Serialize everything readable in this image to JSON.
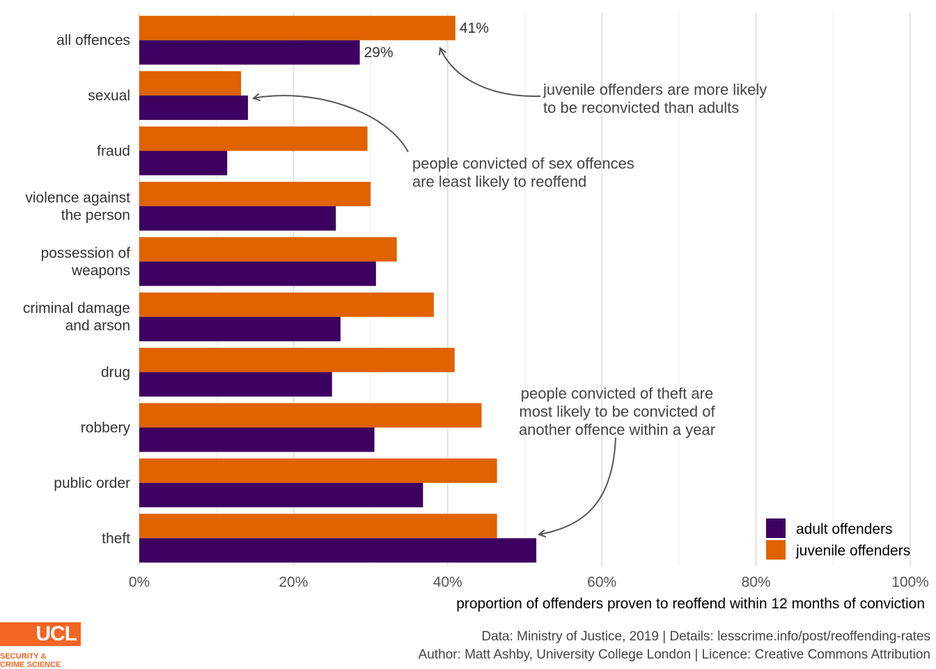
{
  "chart_data": {
    "type": "bar",
    "orientation": "horizontal",
    "categories": [
      "all offences",
      "sexual",
      "fraud",
      "violence against the person",
      "possession of weapons",
      "criminal damage and arson",
      "drug",
      "robbery",
      "public order",
      "theft"
    ],
    "category_label_lines": [
      [
        "all offences"
      ],
      [
        "sexual"
      ],
      [
        "fraud"
      ],
      [
        "violence against",
        "the person"
      ],
      [
        "possession of",
        "weapons"
      ],
      [
        "criminal damage",
        "and arson"
      ],
      [
        "drug"
      ],
      [
        "robbery"
      ],
      [
        "public order"
      ],
      [
        "theft"
      ]
    ],
    "series": [
      {
        "name": "juvenile offenders",
        "color": "#e06200",
        "values": [
          41,
          13.2,
          29.6,
          30,
          33.4,
          38.2,
          40.9,
          44.4,
          46.4,
          46.4
        ]
      },
      {
        "name": "adult offenders",
        "color": "#3d0060",
        "values": [
          28.6,
          14.1,
          11.4,
          25.5,
          30.7,
          26.1,
          25,
          30.5,
          36.8,
          51.5
        ]
      }
    ],
    "data_labels": [
      {
        "category": "all offences",
        "series": "juvenile offenders",
        "text": "41%"
      },
      {
        "category": "all offences",
        "series": "adult offenders",
        "text": "29%"
      }
    ],
    "x_ticks": [
      "0%",
      "20%",
      "40%",
      "60%",
      "80%",
      "100%"
    ],
    "xlim": [
      0,
      100
    ],
    "xlabel": "proportion of offenders proven to reoffend within 12 months of conviction",
    "ylabel": "",
    "grid": true,
    "legend_position": "bottom-right",
    "legend": [
      "adult offenders",
      "juvenile offenders"
    ],
    "annotations": [
      {
        "lines": [
          "juvenile offenders are more likely",
          "to be reconvicted than adults"
        ],
        "points_to": {
          "category": "all offences",
          "series": "juvenile offenders"
        }
      },
      {
        "lines": [
          "people convicted of sex offences",
          "are least likely to reoffend"
        ],
        "points_to": {
          "category": "sexual",
          "series": "adult offenders"
        }
      },
      {
        "lines": [
          "people convicted of theft are",
          "most likely to be convicted of",
          "another offence within a year"
        ],
        "points_to": {
          "category": "theft",
          "series": "adult offenders"
        }
      }
    ]
  },
  "caption": {
    "line1": "Data: Ministry of Justice, 2019 |  Details: lesscrime.info/post/reoffending-rates",
    "line2": "Author: Matt Ashby, University College London |  Licence: Creative Commons Attribution"
  },
  "logo": {
    "name": "UCL",
    "line1": "SECURITY &",
    "line2": "CRIME SCIENCE",
    "color": "#f26522"
  }
}
